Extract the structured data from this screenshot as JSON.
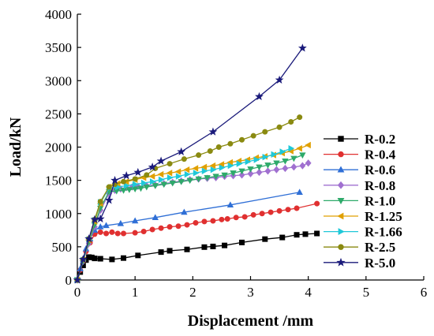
{
  "chart_data": {
    "type": "line",
    "title": "",
    "xlabel": "Displacement /mm",
    "ylabel": "Load/kN",
    "xlim": [
      0,
      6
    ],
    "ylim": [
      0,
      4000
    ],
    "xticks": [
      0,
      1,
      2,
      3,
      4,
      5,
      6
    ],
    "yticks": [
      0,
      500,
      1000,
      1500,
      2000,
      2500,
      3000,
      3500,
      4000
    ],
    "grid": false,
    "legend_position": "right",
    "series": [
      {
        "name": "R-0.2",
        "color": "#000000",
        "marker": "square",
        "x": [
          0,
          0.05,
          0.1,
          0.15,
          0.2,
          0.25,
          0.3,
          0.4,
          0.6,
          0.8,
          1.05,
          1.45,
          1.6,
          1.9,
          2.2,
          2.35,
          2.55,
          2.85,
          3.25,
          3.55,
          3.8,
          3.95,
          4.15
        ],
        "y": [
          0,
          120,
          220,
          300,
          345,
          340,
          325,
          320,
          310,
          330,
          370,
          420,
          440,
          460,
          495,
          505,
          520,
          565,
          615,
          640,
          680,
          690,
          700
        ]
      },
      {
        "name": "R-0.4",
        "color": "#e03030",
        "marker": "circle",
        "x": [
          0,
          0.05,
          0.1,
          0.15,
          0.22,
          0.3,
          0.4,
          0.5,
          0.6,
          0.7,
          0.8,
          1.0,
          1.15,
          1.3,
          1.45,
          1.6,
          1.75,
          1.9,
          2.05,
          2.2,
          2.35,
          2.5,
          2.6,
          2.75,
          2.9,
          3.05,
          3.2,
          3.35,
          3.5,
          3.65,
          3.8,
          4.15
        ],
        "y": [
          0,
          150,
          300,
          430,
          560,
          690,
          720,
          700,
          720,
          700,
          700,
          710,
          730,
          760,
          780,
          800,
          810,
          830,
          860,
          880,
          890,
          910,
          920,
          940,
          950,
          980,
          1000,
          1020,
          1040,
          1060,
          1080,
          1150
        ]
      },
      {
        "name": "R-0.6",
        "color": "#2f6fd6",
        "marker": "triangle",
        "x": [
          0,
          0.05,
          0.1,
          0.15,
          0.22,
          0.3,
          0.4,
          0.5,
          0.75,
          1.0,
          1.35,
          1.85,
          2.65,
          3.85
        ],
        "y": [
          0,
          170,
          320,
          470,
          620,
          750,
          800,
          820,
          850,
          890,
          940,
          1020,
          1130,
          1320
        ]
      },
      {
        "name": "R-0.8",
        "color": "#a070d0",
        "marker": "diamond",
        "x": [
          0,
          0.1,
          0.2,
          0.3,
          0.4,
          0.55,
          0.65,
          0.75,
          0.85,
          0.95,
          1.05,
          1.2,
          1.35,
          1.5,
          1.65,
          1.8,
          1.95,
          2.1,
          2.25,
          2.4,
          2.55,
          2.7,
          2.85,
          3.0,
          3.15,
          3.3,
          3.45,
          3.6,
          3.75,
          3.9,
          4.0
        ],
        "y": [
          0,
          280,
          550,
          800,
          1050,
          1300,
          1350,
          1370,
          1390,
          1400,
          1410,
          1420,
          1430,
          1450,
          1470,
          1490,
          1510,
          1520,
          1530,
          1540,
          1560,
          1570,
          1580,
          1600,
          1620,
          1640,
          1660,
          1680,
          1700,
          1720,
          1760
        ]
      },
      {
        "name": "R-1.0",
        "color": "#2eaa6a",
        "marker": "triangle-down",
        "x": [
          0,
          0.1,
          0.2,
          0.3,
          0.4,
          0.55,
          0.68,
          0.8,
          0.9,
          1.0,
          1.1,
          1.2,
          1.35,
          1.5,
          1.65,
          1.8,
          1.95,
          2.1,
          2.25,
          2.4,
          2.55,
          2.7,
          2.85,
          3.0,
          3.15,
          3.3,
          3.45,
          3.6,
          3.75,
          3.9
        ],
        "y": [
          0,
          290,
          570,
          830,
          1080,
          1330,
          1340,
          1350,
          1360,
          1370,
          1380,
          1400,
          1420,
          1440,
          1460,
          1480,
          1500,
          1520,
          1540,
          1560,
          1580,
          1610,
          1640,
          1670,
          1700,
          1730,
          1760,
          1790,
          1830,
          1880
        ]
      },
      {
        "name": "R-1.25",
        "color": "#e0a000",
        "marker": "triangle-left",
        "x": [
          0,
          0.1,
          0.2,
          0.3,
          0.4,
          0.55,
          0.7,
          0.85,
          1.0,
          1.15,
          1.3,
          1.45,
          1.6,
          1.75,
          1.9,
          2.05,
          2.2,
          2.35,
          2.5,
          2.65,
          2.8,
          2.95,
          3.1,
          3.25,
          3.4,
          3.55,
          3.7,
          3.85,
          4.0
        ],
        "y": [
          0,
          300,
          600,
          880,
          1150,
          1400,
          1450,
          1480,
          1510,
          1540,
          1560,
          1590,
          1610,
          1630,
          1660,
          1680,
          1700,
          1720,
          1740,
          1770,
          1790,
          1810,
          1840,
          1860,
          1880,
          1910,
          1940,
          1980,
          2030
        ]
      },
      {
        "name": "R-1.66",
        "color": "#20c8d8",
        "marker": "triangle-right",
        "x": [
          0,
          0.1,
          0.2,
          0.3,
          0.4,
          0.55,
          0.7,
          0.85,
          1.0,
          1.15,
          1.3,
          1.45,
          1.6,
          1.75,
          1.9,
          2.05,
          2.2,
          2.35,
          2.5,
          2.65,
          2.8,
          2.95,
          3.1,
          3.25,
          3.4,
          3.55,
          3.7
        ],
        "y": [
          0,
          300,
          610,
          900,
          1170,
          1380,
          1400,
          1420,
          1440,
          1460,
          1480,
          1510,
          1540,
          1560,
          1590,
          1610,
          1640,
          1660,
          1690,
          1720,
          1750,
          1780,
          1810,
          1850,
          1890,
          1930,
          1980
        ]
      },
      {
        "name": "R-2.5",
        "color": "#8a8a10",
        "marker": "circle",
        "x": [
          0,
          0.1,
          0.2,
          0.3,
          0.4,
          0.55,
          0.65,
          0.8,
          1.0,
          1.2,
          1.35,
          1.6,
          1.85,
          2.1,
          2.3,
          2.45,
          2.65,
          2.85,
          3.05,
          3.25,
          3.5,
          3.7,
          3.85
        ],
        "y": [
          0,
          310,
          620,
          910,
          1180,
          1400,
          1440,
          1480,
          1520,
          1580,
          1680,
          1750,
          1820,
          1880,
          1940,
          2000,
          2050,
          2110,
          2170,
          2230,
          2300,
          2380,
          2450
        ]
      },
      {
        "name": "R-5.0",
        "color": "#1a1a7a",
        "marker": "star",
        "x": [
          0,
          0.1,
          0.2,
          0.3,
          0.4,
          0.55,
          0.65,
          0.85,
          1.05,
          1.3,
          1.45,
          1.8,
          2.35,
          3.15,
          3.5,
          3.9
        ],
        "y": [
          0,
          310,
          620,
          910,
          920,
          1200,
          1500,
          1570,
          1620,
          1700,
          1790,
          1930,
          2230,
          2760,
          3010,
          3490
        ]
      }
    ]
  }
}
